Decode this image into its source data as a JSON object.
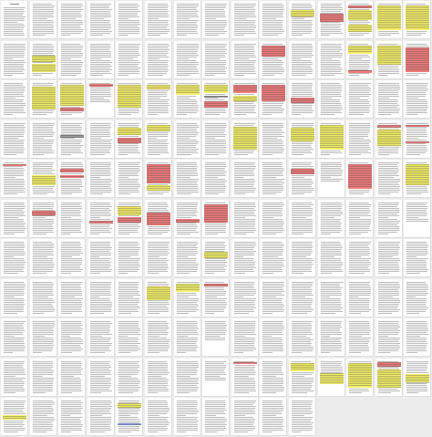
{
  "view": "page-thumbnail-grid",
  "grid": {
    "columns": 15,
    "rows": 11
  },
  "colors": {
    "background": "#ececec",
    "page": "#ffffff",
    "text_line": "#b9b9b9",
    "highlight_yellow": "#f3ef6a",
    "highlight_red": "#ef7d7d",
    "highlight_gray": "#9b9b9b",
    "highlight_blue": "#8f9fe8"
  },
  "pages": [
    {
      "n": 1,
      "title": true,
      "highlights": []
    },
    {
      "n": 2,
      "highlights": []
    },
    {
      "n": 3,
      "highlights": []
    },
    {
      "n": 4,
      "highlights": []
    },
    {
      "n": 5,
      "highlights": []
    },
    {
      "n": 6,
      "highlights": []
    },
    {
      "n": 7,
      "highlights": []
    },
    {
      "n": 8,
      "highlights": []
    },
    {
      "n": 9,
      "highlights": []
    },
    {
      "n": 10,
      "highlights": []
    },
    {
      "n": 11,
      "highlights": [
        {
          "c": "yellow",
          "s": 0.2,
          "e": 0.4
        }
      ]
    },
    {
      "n": 12,
      "highlights": [
        {
          "c": "red",
          "s": 0.3,
          "e": 0.55
        }
      ]
    },
    {
      "n": 13,
      "highlights": [
        {
          "c": "red",
          "s": 0.05,
          "e": 0.15
        },
        {
          "c": "yellow",
          "s": 0.2,
          "e": 0.5
        },
        {
          "c": "yellow",
          "s": 0.65,
          "e": 0.85
        }
      ]
    },
    {
      "n": 14,
      "highlights": [
        {
          "c": "yellow",
          "s": 0.05,
          "e": 0.8
        }
      ]
    },
    {
      "n": 15,
      "highlights": [
        {
          "c": "yellow",
          "s": 0.05,
          "e": 0.8
        }
      ]
    },
    {
      "n": 16,
      "highlights": []
    },
    {
      "n": 17,
      "highlights": [
        {
          "c": "yellow",
          "s": 0.35,
          "e": 0.55
        },
        {
          "c": "yellow",
          "s": 0.62,
          "e": 0.85
        }
      ]
    },
    {
      "n": 18,
      "highlights": []
    },
    {
      "n": 19,
      "highlights": []
    },
    {
      "n": 20,
      "highlights": []
    },
    {
      "n": 21,
      "highlights": []
    },
    {
      "n": 22,
      "highlights": []
    },
    {
      "n": 23,
      "highlights": []
    },
    {
      "n": 24,
      "highlights": []
    },
    {
      "n": 25,
      "highlights": [
        {
          "c": "red",
          "s": 0.05,
          "e": 0.4
        }
      ]
    },
    {
      "n": 26,
      "highlights": []
    },
    {
      "n": 27,
      "highlights": []
    },
    {
      "n": 28,
      "highlights": [
        {
          "c": "yellow",
          "s": 0.05,
          "e": 0.3
        },
        {
          "c": "red",
          "s": 0.8,
          "e": 0.88
        }
      ]
    },
    {
      "n": 29,
      "highlights": [
        {
          "c": "yellow",
          "s": 0.05,
          "e": 0.65
        }
      ]
    },
    {
      "n": 30,
      "highlights": [
        {
          "c": "red",
          "s": 0.1,
          "e": 0.85
        }
      ]
    },
    {
      "n": 31,
      "highlights": []
    },
    {
      "n": 32,
      "highlights": [
        {
          "c": "yellow",
          "s": 0.1,
          "e": 0.8
        }
      ]
    },
    {
      "n": 33,
      "highlights": [
        {
          "c": "yellow",
          "s": 0.05,
          "e": 0.7
        },
        {
          "c": "red",
          "s": 0.75,
          "e": 0.85
        }
      ]
    },
    {
      "n": 34,
      "blank_bottom": true,
      "highlights": [
        {
          "c": "red",
          "s": 0.03,
          "e": 0.1
        }
      ]
    },
    {
      "n": 35,
      "highlights": [
        {
          "c": "yellow",
          "s": 0.05,
          "e": 0.75
        }
      ]
    },
    {
      "n": 36,
      "highlights": [
        {
          "c": "yellow",
          "s": 0.05,
          "e": 0.2
        }
      ]
    },
    {
      "n": 37,
      "highlights": [
        {
          "c": "yellow",
          "s": 0.05,
          "e": 0.35
        }
      ]
    },
    {
      "n": 38,
      "highlights": [
        {
          "c": "gray",
          "s": 0.38,
          "e": 0.45
        },
        {
          "c": "yellow",
          "s": 0.05,
          "e": 0.3
        },
        {
          "c": "red",
          "s": 0.55,
          "e": 0.75
        }
      ]
    },
    {
      "n": 39,
      "highlights": [
        {
          "c": "red",
          "s": 0.05,
          "e": 0.3
        },
        {
          "c": "yellow",
          "s": 0.4,
          "e": 0.55
        }
      ]
    },
    {
      "n": 40,
      "highlights": [
        {
          "c": "red",
          "s": 0.05,
          "e": 0.55
        }
      ]
    },
    {
      "n": 41,
      "highlights": [
        {
          "c": "red",
          "s": 0.45,
          "e": 0.6
        }
      ]
    },
    {
      "n": 42,
      "highlights": []
    },
    {
      "n": 43,
      "highlights": []
    },
    {
      "n": 44,
      "highlights": []
    },
    {
      "n": 45,
      "highlights": []
    },
    {
      "n": 46,
      "highlights": []
    },
    {
      "n": 47,
      "highlights": []
    },
    {
      "n": 48,
      "highlights": [
        {
          "c": "gray",
          "s": 0.35,
          "e": 0.45
        }
      ]
    },
    {
      "n": 49,
      "highlights": []
    },
    {
      "n": 50,
      "highlights": [
        {
          "c": "yellow",
          "s": 0.15,
          "e": 0.35
        },
        {
          "c": "red",
          "s": 0.45,
          "e": 0.6
        }
      ]
    },
    {
      "n": 51,
      "highlights": [
        {
          "c": "yellow",
          "s": 0.05,
          "e": 0.25
        }
      ]
    },
    {
      "n": 52,
      "highlights": []
    },
    {
      "n": 53,
      "highlights": []
    },
    {
      "n": 54,
      "highlights": [
        {
          "c": "yellow",
          "s": 0.1,
          "e": 0.8
        }
      ]
    },
    {
      "n": 55,
      "highlights": []
    },
    {
      "n": 56,
      "highlights": [
        {
          "c": "yellow",
          "s": 0.15,
          "e": 0.55
        }
      ]
    },
    {
      "n": 57,
      "highlights": [
        {
          "c": "yellow",
          "s": 0.05,
          "e": 0.8
        }
      ]
    },
    {
      "n": 58,
      "highlights": []
    },
    {
      "n": 59,
      "highlights": [
        {
          "c": "red",
          "s": 0.05,
          "e": 0.15
        },
        {
          "c": "yellow",
          "s": 0.2,
          "e": 0.7
        }
      ]
    },
    {
      "n": 60,
      "highlights": [
        {
          "c": "red",
          "s": 0.05,
          "e": 0.1
        },
        {
          "c": "red",
          "s": 0.55,
          "e": 0.62
        }
      ]
    },
    {
      "n": 61,
      "highlights": [
        {
          "c": "red",
          "s": 0.05,
          "e": 0.12
        }
      ]
    },
    {
      "n": 62,
      "highlights": [
        {
          "c": "yellow",
          "s": 0.4,
          "e": 0.7
        }
      ]
    },
    {
      "n": 63,
      "highlights": [
        {
          "c": "red",
          "s": 0.2,
          "e": 0.3
        },
        {
          "c": "red",
          "s": 0.4,
          "e": 0.48
        }
      ]
    },
    {
      "n": 64,
      "highlights": []
    },
    {
      "n": 65,
      "highlights": []
    },
    {
      "n": 66,
      "highlights": [
        {
          "c": "red",
          "s": 0.05,
          "e": 0.65
        },
        {
          "c": "yellow",
          "s": 0.7,
          "e": 0.85
        }
      ]
    },
    {
      "n": 67,
      "highlights": []
    },
    {
      "n": 68,
      "highlights": []
    },
    {
      "n": 69,
      "highlights": []
    },
    {
      "n": 70,
      "highlights": []
    },
    {
      "n": 71,
      "highlights": [
        {
          "c": "red",
          "s": 0.2,
          "e": 0.35
        }
      ]
    },
    {
      "n": 72,
      "blank_bottom": true,
      "highlights": []
    },
    {
      "n": 73,
      "highlights": [
        {
          "c": "red",
          "s": 0.05,
          "e": 0.8
        }
      ]
    },
    {
      "n": 74,
      "highlights": []
    },
    {
      "n": 75,
      "highlights": [
        {
          "c": "yellow",
          "s": 0.05,
          "e": 0.7
        }
      ]
    },
    {
      "n": 76,
      "highlights": []
    },
    {
      "n": 77,
      "highlights": [
        {
          "c": "red",
          "s": 0.25,
          "e": 0.4
        }
      ]
    },
    {
      "n": 78,
      "highlights": []
    },
    {
      "n": 79,
      "highlights": [
        {
          "c": "red",
          "s": 0.55,
          "e": 0.65
        }
      ]
    },
    {
      "n": 80,
      "highlights": [
        {
          "c": "yellow",
          "s": 0.1,
          "e": 0.4
        },
        {
          "c": "red",
          "s": 0.45,
          "e": 0.6
        }
      ]
    },
    {
      "n": 81,
      "highlights": [
        {
          "c": "red",
          "s": 0.3,
          "e": 0.7
        }
      ]
    },
    {
      "n": 82,
      "highlights": [
        {
          "c": "red",
          "s": 0.5,
          "e": 0.6
        }
      ]
    },
    {
      "n": 83,
      "highlights": [
        {
          "c": "red",
          "s": 0.05,
          "e": 0.6
        }
      ]
    },
    {
      "n": 84,
      "highlights": []
    },
    {
      "n": 85,
      "highlights": []
    },
    {
      "n": 86,
      "highlights": []
    },
    {
      "n": 87,
      "highlights": []
    },
    {
      "n": 88,
      "highlights": []
    },
    {
      "n": 89,
      "highlights": []
    },
    {
      "n": 90,
      "blank_bottom": true,
      "highlights": []
    },
    {
      "n": 91,
      "highlights": []
    },
    {
      "n": 92,
      "highlights": []
    },
    {
      "n": 93,
      "highlights": []
    },
    {
      "n": 94,
      "highlights": []
    },
    {
      "n": 95,
      "highlights": []
    },
    {
      "n": 96,
      "highlights": []
    },
    {
      "n": 97,
      "highlights": []
    },
    {
      "n": 98,
      "highlights": [
        {
          "c": "yellow",
          "s": 0.3,
          "e": 0.5
        }
      ]
    },
    {
      "n": 99,
      "highlights": []
    },
    {
      "n": 100,
      "highlights": []
    },
    {
      "n": 101,
      "highlights": []
    },
    {
      "n": 102,
      "highlights": []
    },
    {
      "n": 103,
      "highlights": []
    },
    {
      "n": 104,
      "highlights": []
    },
    {
      "n": 105,
      "highlights": []
    },
    {
      "n": 106,
      "highlights": []
    },
    {
      "n": 107,
      "highlights": []
    },
    {
      "n": 108,
      "highlights": []
    },
    {
      "n": 109,
      "highlights": []
    },
    {
      "n": 110,
      "highlights": []
    },
    {
      "n": 111,
      "highlights": [
        {
          "c": "yellow",
          "s": 0.15,
          "e": 0.55
        }
      ]
    },
    {
      "n": 112,
      "highlights": [
        {
          "c": "yellow",
          "s": 0.05,
          "e": 0.3
        }
      ]
    },
    {
      "n": 113,
      "highlights": [
        {
          "c": "red",
          "s": 0.05,
          "e": 0.15
        }
      ]
    },
    {
      "n": 114,
      "highlights": []
    },
    {
      "n": 115,
      "highlights": []
    },
    {
      "n": 116,
      "highlights": []
    },
    {
      "n": 117,
      "highlights": []
    },
    {
      "n": 118,
      "highlights": []
    },
    {
      "n": 119,
      "highlights": []
    },
    {
      "n": 120,
      "highlights": []
    },
    {
      "n": 121,
      "highlights": []
    },
    {
      "n": 122,
      "highlights": []
    },
    {
      "n": 123,
      "highlights": []
    },
    {
      "n": 124,
      "highlights": []
    },
    {
      "n": 125,
      "highlights": []
    },
    {
      "n": 126,
      "highlights": []
    },
    {
      "n": 127,
      "highlights": []
    },
    {
      "n": 128,
      "blank_bottom": true,
      "highlights": []
    },
    {
      "n": 129,
      "highlights": []
    },
    {
      "n": 130,
      "highlights": []
    },
    {
      "n": 131,
      "highlights": []
    },
    {
      "n": 132,
      "highlights": []
    },
    {
      "n": 133,
      "highlights": []
    },
    {
      "n": 134,
      "highlights": []
    },
    {
      "n": 135,
      "highlights": []
    },
    {
      "n": 136,
      "highlights": []
    },
    {
      "n": 137,
      "highlights": []
    },
    {
      "n": 138,
      "highlights": []
    },
    {
      "n": 139,
      "highlights": []
    },
    {
      "n": 140,
      "highlights": []
    },
    {
      "n": 141,
      "highlights": []
    },
    {
      "n": 142,
      "highlights": []
    },
    {
      "n": 143,
      "blank_bottom": true,
      "highlights": []
    },
    {
      "n": 144,
      "highlights": [
        {
          "c": "red",
          "s": 0.02,
          "e": 0.06
        }
      ]
    },
    {
      "n": 145,
      "highlights": []
    },
    {
      "n": 146,
      "highlights": [
        {
          "c": "yellow",
          "s": 0.05,
          "e": 0.3
        }
      ]
    },
    {
      "n": 147,
      "blank_bottom": true,
      "highlights": [
        {
          "c": "yellow",
          "s": 0.35,
          "e": 0.7
        }
      ]
    },
    {
      "n": 148,
      "highlights": [
        {
          "c": "yellow",
          "s": 0.05,
          "e": 0.8
        }
      ]
    },
    {
      "n": 149,
      "highlights": [
        {
          "c": "red",
          "s": 0.02,
          "e": 0.18
        },
        {
          "c": "yellow",
          "s": 0.25,
          "e": 0.8
        }
      ]
    },
    {
      "n": 150,
      "highlights": [
        {
          "c": "yellow",
          "s": 0.4,
          "e": 0.65
        }
      ]
    },
    {
      "n": 151,
      "highlights": [
        {
          "c": "yellow",
          "s": 0.45,
          "e": 0.58
        }
      ]
    },
    {
      "n": 152,
      "highlights": []
    },
    {
      "n": 153,
      "highlights": []
    },
    {
      "n": 154,
      "highlights": []
    },
    {
      "n": 155,
      "highlights": [
        {
          "c": "yellow",
          "s": 0.08,
          "e": 0.22
        },
        {
          "c": "blue",
          "s": 0.7,
          "e": 0.74
        }
      ]
    },
    {
      "n": 156,
      "highlights": []
    },
    {
      "n": 157,
      "highlights": []
    },
    {
      "n": 158,
      "highlights": []
    },
    {
      "n": 159,
      "highlights": []
    },
    {
      "n": 160,
      "highlights": []
    },
    {
      "n": 161,
      "highlights": []
    }
  ]
}
